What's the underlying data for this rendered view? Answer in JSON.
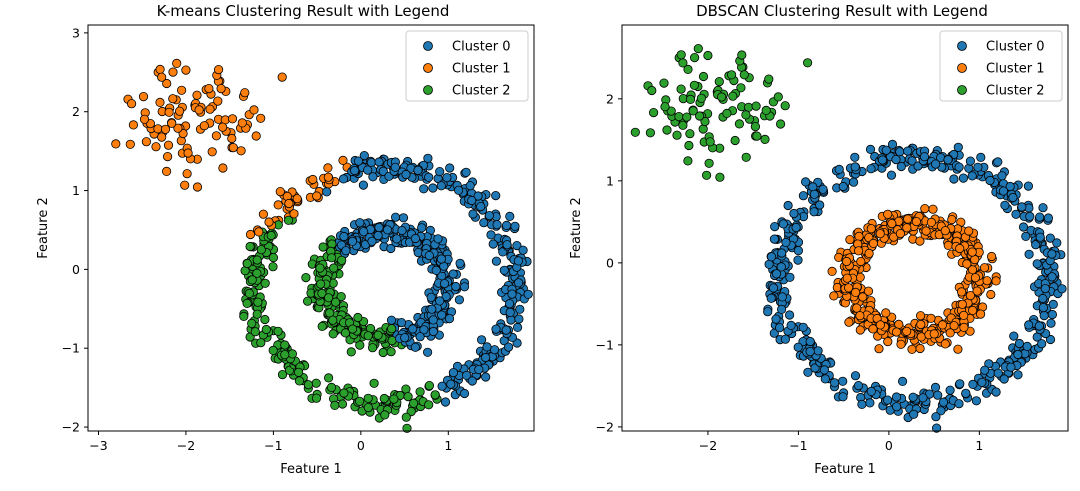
{
  "chart_data": [
    {
      "type": "scatter",
      "title": "K-means Clustering Result with Legend",
      "xlabel": "Feature 1",
      "ylabel": "Feature 2",
      "xlim": [
        -3.12,
        1.98
      ],
      "ylim": [
        -2.05,
        3.1
      ],
      "xticks": [
        -3,
        -2,
        -1,
        0,
        1
      ],
      "yticks": [
        -2,
        -1,
        0,
        1,
        2,
        3
      ],
      "grid": false,
      "legend_position": "top-right",
      "series": [
        {
          "name": "Cluster 0",
          "color": "#1f77b4"
        },
        {
          "name": "Cluster 1",
          "color": "#ff7f0e"
        },
        {
          "name": "Cluster 2",
          "color": "#2ca02c"
        }
      ]
    },
    {
      "type": "scatter",
      "title": "DBSCAN Clustering Result with Legend",
      "xlabel": "Feature 1",
      "ylabel": "Feature 2",
      "xlim": [
        -2.95,
        1.98
      ],
      "ylim": [
        -2.05,
        2.9
      ],
      "xticks": [
        -2,
        -1,
        0,
        1
      ],
      "yticks": [
        -2,
        -1,
        0,
        1,
        2
      ],
      "grid": false,
      "legend_position": "top-right",
      "series": [
        {
          "name": "Cluster 0",
          "color": "#1f77b4"
        },
        {
          "name": "Cluster 1",
          "color": "#ff7f0e"
        },
        {
          "name": "Cluster 2",
          "color": "#2ca02c"
        }
      ]
    }
  ]
}
